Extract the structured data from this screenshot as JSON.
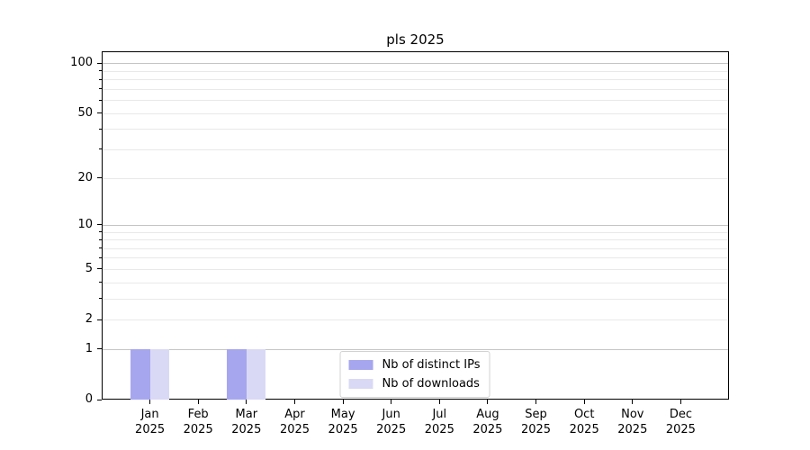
{
  "figure": {
    "background": "#ffffff",
    "title": "pls 2025"
  },
  "chart_data": {
    "type": "bar",
    "title": "pls 2025",
    "categories": [
      "Jan 2025",
      "Feb 2025",
      "Mar 2025",
      "Apr 2025",
      "May 2025",
      "Jun 2025",
      "Jul 2025",
      "Aug 2025",
      "Sep 2025",
      "Oct 2025",
      "Nov 2025",
      "Dec 2025"
    ],
    "series": [
      {
        "name": "Nb of distinct IPs",
        "color": "#a6a6ef",
        "values": [
          1,
          0,
          1,
          0,
          0,
          0,
          0,
          0,
          0,
          0,
          0,
          0
        ]
      },
      {
        "name": "Nb of downloads",
        "color": "#d9d9f6",
        "values": [
          1,
          0,
          1,
          0,
          0,
          0,
          0,
          0,
          0,
          0,
          0,
          0
        ]
      }
    ],
    "xlabel": "",
    "ylabel": "",
    "yaxis": {
      "scale": "log1p",
      "major_ticks": [
        0,
        1,
        2,
        5,
        10,
        20,
        50,
        100
      ],
      "minor_gridline_values": [
        3,
        4,
        6,
        7,
        8,
        9,
        30,
        40,
        60,
        70,
        80,
        90
      ],
      "decade_values": [
        1,
        10,
        100
      ],
      "ymax": 118
    },
    "grid": {
      "on": true,
      "decade_line_color": "#c5c5c5",
      "other_line_color": "#e9e9e9"
    },
    "legend": {
      "position": "lower-center-inside",
      "entries": [
        "Nb of distinct IPs",
        "Nb of downloads"
      ]
    }
  }
}
